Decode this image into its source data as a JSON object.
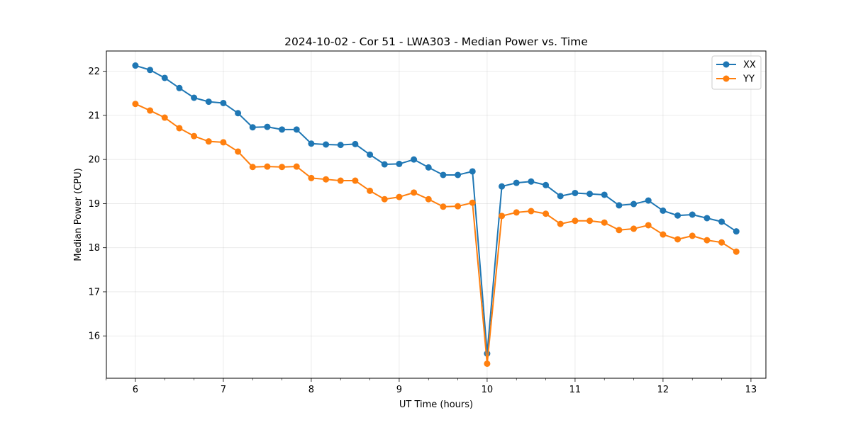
{
  "chart_data": {
    "type": "line",
    "title": "2024-10-02 - Cor 51 - LWA303 - Median Power vs. Time",
    "xlabel": "UT Time (hours)",
    "ylabel": "Median Power (CPU)",
    "xlim": [
      5.67,
      13.17
    ],
    "ylim": [
      15.04,
      22.46
    ],
    "grid": true,
    "legend_position": "top-right",
    "x_ticks": [
      6,
      7,
      8,
      9,
      10,
      11,
      12,
      13
    ],
    "x_tick_labels": [
      "6",
      "7",
      "8",
      "9",
      "10",
      "11",
      "12",
      "13"
    ],
    "x_minor_ticks": [
      5.667,
      6.333,
      6.667,
      7.333,
      7.667,
      8.333,
      8.667,
      9.333,
      9.667,
      10.333,
      10.667,
      11.333,
      11.667,
      12.333,
      12.667
    ],
    "y_ticks": [
      16,
      17,
      18,
      19,
      20,
      21,
      22
    ],
    "y_tick_labels": [
      "16",
      "17",
      "18",
      "19",
      "20",
      "21",
      "22"
    ],
    "x": [
      6.0,
      6.1667,
      6.3333,
      6.5,
      6.6667,
      6.8333,
      7.0,
      7.1667,
      7.3333,
      7.5,
      7.6667,
      7.8333,
      8.0,
      8.1667,
      8.3333,
      8.5,
      8.6667,
      8.8333,
      9.0,
      9.1667,
      9.3333,
      9.5,
      9.6667,
      9.8333,
      10.0,
      10.1667,
      10.3333,
      10.5,
      10.6667,
      10.8333,
      11.0,
      11.1667,
      11.3333,
      11.5,
      11.6667,
      11.8333,
      12.0,
      12.1667,
      12.3333,
      12.5,
      12.6667,
      12.8333
    ],
    "series": [
      {
        "name": "XX",
        "color": "#1f77b4",
        "values": [
          22.13,
          22.03,
          21.85,
          21.62,
          21.4,
          21.31,
          21.28,
          21.05,
          20.73,
          20.74,
          20.68,
          20.68,
          20.36,
          20.34,
          20.33,
          20.35,
          20.11,
          19.89,
          19.9,
          20.0,
          19.82,
          19.65,
          19.65,
          19.73,
          15.6,
          19.39,
          19.47,
          19.5,
          19.42,
          19.17,
          19.24,
          19.22,
          19.2,
          18.96,
          18.99,
          19.07,
          18.84,
          18.73,
          18.75,
          18.67,
          18.59,
          18.37
        ]
      },
      {
        "name": "YY",
        "color": "#ff7f0e",
        "values": [
          21.26,
          21.11,
          20.95,
          20.71,
          20.53,
          20.41,
          20.39,
          20.18,
          19.83,
          19.84,
          19.83,
          19.84,
          19.58,
          19.55,
          19.52,
          19.52,
          19.29,
          19.1,
          19.15,
          19.25,
          19.1,
          18.93,
          18.94,
          19.02,
          15.37,
          18.72,
          18.8,
          18.83,
          18.77,
          18.54,
          18.61,
          18.61,
          18.57,
          18.4,
          18.43,
          18.51,
          18.3,
          18.19,
          18.27,
          18.17,
          18.12,
          17.91
        ]
      }
    ]
  }
}
